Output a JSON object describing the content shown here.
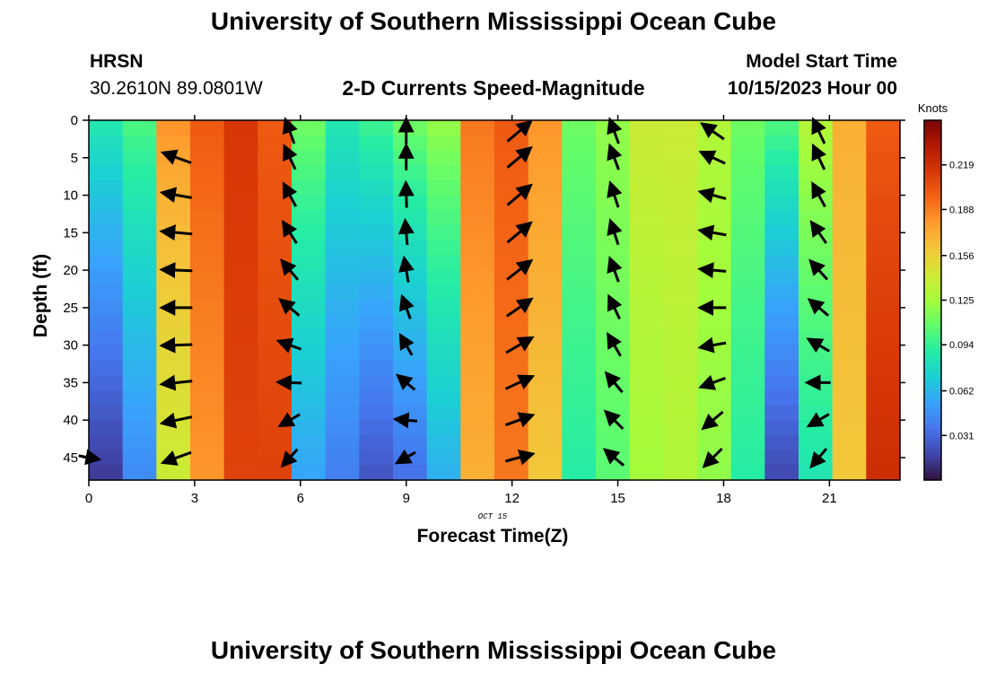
{
  "header": {
    "title_top": "University of Southern Mississippi Ocean Cube",
    "title_bottom": "University of Southern Mississippi Ocean Cube",
    "station": "HRSN",
    "coords": "30.2610N  89.0801W",
    "plot_title": "2-D Currents Speed-Magnitude",
    "model_start_label": "Model Start Time",
    "model_start_value": "10/15/2023 Hour 00"
  },
  "chart_data": {
    "type": "heatmap",
    "title": "2-D Currents Speed-Magnitude",
    "xlabel": "Forecast Time(Z)",
    "ylabel": "Depth (ft)",
    "date_label": "OCT 15",
    "x_ticks": [
      0,
      3,
      6,
      9,
      12,
      15,
      18,
      21
    ],
    "y_ticks": [
      0,
      5,
      10,
      15,
      20,
      25,
      30,
      35,
      40,
      45
    ],
    "xlim": [
      0,
      23.0
    ],
    "ylim": [
      0,
      48
    ],
    "y_inverted": true,
    "colorbar": {
      "label": "Knots",
      "ticks": [
        0.031,
        0.062,
        0.094,
        0.125,
        0.156,
        0.188,
        0.219
      ],
      "range": [
        0,
        0.25
      ],
      "colormap": [
        "#30123b",
        "#4145ab",
        "#4675ed",
        "#39a2fc",
        "#1bcfd4",
        "#24eca6",
        "#61fc6c",
        "#a4fc3b",
        "#d1e834",
        "#f3c63a",
        "#fe9b2d",
        "#f36315",
        "#d93806",
        "#b11901",
        "#7a0402"
      ]
    },
    "hours": [
      0,
      1,
      2,
      3,
      4,
      5,
      6,
      7,
      8,
      9,
      10,
      11,
      12,
      13,
      14,
      15,
      16,
      17,
      18,
      19,
      20,
      21,
      22,
      23
    ],
    "surface_speed": [
      0.085,
      0.1,
      0.18,
      0.2,
      0.215,
      0.2,
      0.11,
      0.085,
      0.095,
      0.11,
      0.12,
      0.19,
      0.2,
      0.18,
      0.11,
      0.12,
      0.14,
      0.14,
      0.13,
      0.11,
      0.1,
      0.13,
      0.17,
      0.2
    ],
    "bottom_speed": [
      0.015,
      0.045,
      0.14,
      0.18,
      0.21,
      0.21,
      0.055,
      0.04,
      0.025,
      0.035,
      0.06,
      0.17,
      0.19,
      0.16,
      0.09,
      0.105,
      0.125,
      0.13,
      0.12,
      0.09,
      0.02,
      0.085,
      0.16,
      0.22
    ],
    "vector_depths": [
      0,
      5,
      10,
      15,
      20,
      25,
      30,
      35,
      40,
      45
    ],
    "vector_columns": [
      {
        "hour": 0,
        "angles_deg": [
          null,
          null,
          null,
          null,
          null,
          null,
          null,
          null,
          null,
          -10
        ],
        "speeds": [
          null,
          null,
          null,
          null,
          null,
          null,
          null,
          null,
          null,
          0.02
        ]
      },
      {
        "hour": 2.5,
        "angles_deg": [
          null,
          160,
          170,
          175,
          178,
          180,
          182,
          186,
          192,
          200
        ],
        "speeds": [
          null,
          0.19,
          0.19,
          0.2,
          0.2,
          0.2,
          0.2,
          0.2,
          0.2,
          0.19
        ]
      },
      {
        "hour": 5.7,
        "angles_deg": [
          110,
          115,
          118,
          122,
          130,
          140,
          160,
          178,
          210,
          228
        ],
        "speeds": [
          0.11,
          0.11,
          0.11,
          0.1,
          0.1,
          0.09,
          0.08,
          0.07,
          0.06,
          0.05
        ]
      },
      {
        "hour": 9,
        "angles_deg": [
          90,
          90,
          92,
          95,
          100,
          110,
          120,
          140,
          175,
          210
        ],
        "speeds": [
          0.1,
          0.1,
          0.1,
          0.09,
          0.09,
          0.08,
          0.06,
          0.05,
          0.04,
          0.03
        ]
      },
      {
        "hour": 12.2,
        "angles_deg": [
          40,
          40,
          40,
          40,
          38,
          35,
          30,
          25,
          20,
          15
        ],
        "speeds": [
          0.2,
          0.2,
          0.2,
          0.2,
          0.2,
          0.19,
          0.19,
          0.18,
          0.17,
          0.16
        ]
      },
      {
        "hour": 14.9,
        "angles_deg": [
          110,
          110,
          108,
          108,
          110,
          115,
          120,
          130,
          135,
          140
        ],
        "speeds": [
          0.11,
          0.11,
          0.11,
          0.1,
          0.1,
          0.1,
          0.1,
          0.1,
          0.09,
          0.09
        ]
      },
      {
        "hour": 17.7,
        "angles_deg": [
          145,
          155,
          165,
          170,
          175,
          180,
          190,
          200,
          220,
          225
        ],
        "speeds": [
          0.13,
          0.13,
          0.13,
          0.13,
          0.12,
          0.12,
          0.12,
          0.12,
          0.11,
          0.1
        ]
      },
      {
        "hour": 20.7,
        "angles_deg": [
          115,
          115,
          118,
          125,
          132,
          140,
          150,
          180,
          210,
          230
        ],
        "speeds": [
          0.13,
          0.12,
          0.12,
          0.11,
          0.1,
          0.09,
          0.08,
          0.07,
          0.07,
          0.07
        ]
      }
    ]
  }
}
